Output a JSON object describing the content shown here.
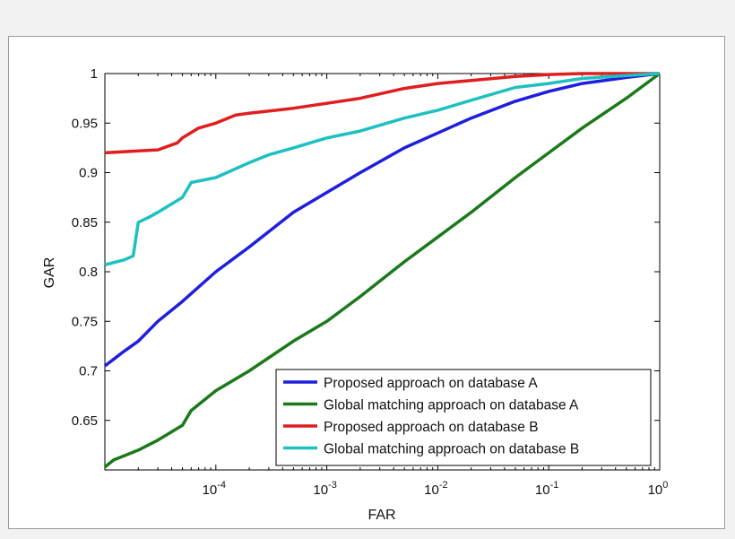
{
  "chart_data": {
    "type": "line",
    "xlabel": "FAR",
    "ylabel": "GAR",
    "xscale": "log",
    "xlim": [
      1e-05,
      1
    ],
    "ylim": [
      0.6,
      1
    ],
    "grid": false,
    "legend_position": "bottom-right",
    "x_ticks": [
      {
        "value": 0.0001,
        "base": "10",
        "exp": "-4"
      },
      {
        "value": 0.001,
        "base": "10",
        "exp": "-3"
      },
      {
        "value": 0.01,
        "base": "10",
        "exp": "-2"
      },
      {
        "value": 0.1,
        "base": "10",
        "exp": "-1"
      },
      {
        "value": 1,
        "base": "10",
        "exp": "0"
      }
    ],
    "y_ticks": [
      {
        "value": 0.65,
        "label": "0.65"
      },
      {
        "value": 0.7,
        "label": "0.7"
      },
      {
        "value": 0.75,
        "label": "0.75"
      },
      {
        "value": 0.8,
        "label": "0.8"
      },
      {
        "value": 0.85,
        "label": "0.85"
      },
      {
        "value": 0.9,
        "label": "0.9"
      },
      {
        "value": 0.95,
        "label": "0.95"
      },
      {
        "value": 1,
        "label": "1"
      }
    ],
    "series": [
      {
        "name": "Proposed approach on database A",
        "color": "#1f1fdc",
        "points": [
          [
            1e-05,
            0.705
          ],
          [
            1.5e-05,
            0.72
          ],
          [
            2e-05,
            0.73
          ],
          [
            3e-05,
            0.75
          ],
          [
            5e-05,
            0.77
          ],
          [
            0.0001,
            0.8
          ],
          [
            0.0002,
            0.825
          ],
          [
            0.0005,
            0.86
          ],
          [
            0.001,
            0.88
          ],
          [
            0.002,
            0.9
          ],
          [
            0.005,
            0.925
          ],
          [
            0.01,
            0.94
          ],
          [
            0.02,
            0.955
          ],
          [
            0.05,
            0.972
          ],
          [
            0.1,
            0.982
          ],
          [
            0.2,
            0.99
          ],
          [
            0.5,
            0.996
          ],
          [
            1,
            1
          ]
        ]
      },
      {
        "name": "Global matching approach on database A",
        "color": "#1a7a1a",
        "points": [
          [
            1e-05,
            0.603
          ],
          [
            1.2e-05,
            0.61
          ],
          [
            2e-05,
            0.62
          ],
          [
            3e-05,
            0.63
          ],
          [
            5e-05,
            0.645
          ],
          [
            6e-05,
            0.66
          ],
          [
            0.0001,
            0.68
          ],
          [
            0.0002,
            0.7
          ],
          [
            0.0005,
            0.73
          ],
          [
            0.001,
            0.75
          ],
          [
            0.002,
            0.775
          ],
          [
            0.005,
            0.81
          ],
          [
            0.01,
            0.835
          ],
          [
            0.02,
            0.86
          ],
          [
            0.05,
            0.895
          ],
          [
            0.1,
            0.92
          ],
          [
            0.2,
            0.945
          ],
          [
            0.5,
            0.975
          ],
          [
            1,
            1
          ]
        ]
      },
      {
        "name": "Proposed approach on database B",
        "color": "#e01e1e",
        "points": [
          [
            1e-05,
            0.92
          ],
          [
            2e-05,
            0.922
          ],
          [
            3e-05,
            0.923
          ],
          [
            4.5e-05,
            0.93
          ],
          [
            5e-05,
            0.935
          ],
          [
            7e-05,
            0.945
          ],
          [
            0.0001,
            0.95
          ],
          [
            0.00015,
            0.958
          ],
          [
            0.0002,
            0.96
          ],
          [
            0.0005,
            0.965
          ],
          [
            0.001,
            0.97
          ],
          [
            0.002,
            0.975
          ],
          [
            0.005,
            0.985
          ],
          [
            0.01,
            0.99
          ],
          [
            0.02,
            0.993
          ],
          [
            0.05,
            0.997
          ],
          [
            0.1,
            0.999
          ],
          [
            0.2,
            1
          ],
          [
            1,
            1
          ]
        ]
      },
      {
        "name": "Global matching approach on database B",
        "color": "#1ec0c0",
        "points": [
          [
            1e-05,
            0.807
          ],
          [
            1.5e-05,
            0.812
          ],
          [
            1.8e-05,
            0.816
          ],
          [
            2e-05,
            0.85
          ],
          [
            2.5e-05,
            0.855
          ],
          [
            3e-05,
            0.86
          ],
          [
            5e-05,
            0.875
          ],
          [
            6e-05,
            0.89
          ],
          [
            0.0001,
            0.895
          ],
          [
            0.0002,
            0.91
          ],
          [
            0.0003,
            0.918
          ],
          [
            0.0005,
            0.925
          ],
          [
            0.001,
            0.935
          ],
          [
            0.002,
            0.942
          ],
          [
            0.005,
            0.955
          ],
          [
            0.01,
            0.963
          ],
          [
            0.02,
            0.973
          ],
          [
            0.05,
            0.986
          ],
          [
            0.1,
            0.99
          ],
          [
            0.2,
            0.995
          ],
          [
            0.5,
            0.998
          ],
          [
            1,
            1
          ]
        ]
      }
    ]
  }
}
